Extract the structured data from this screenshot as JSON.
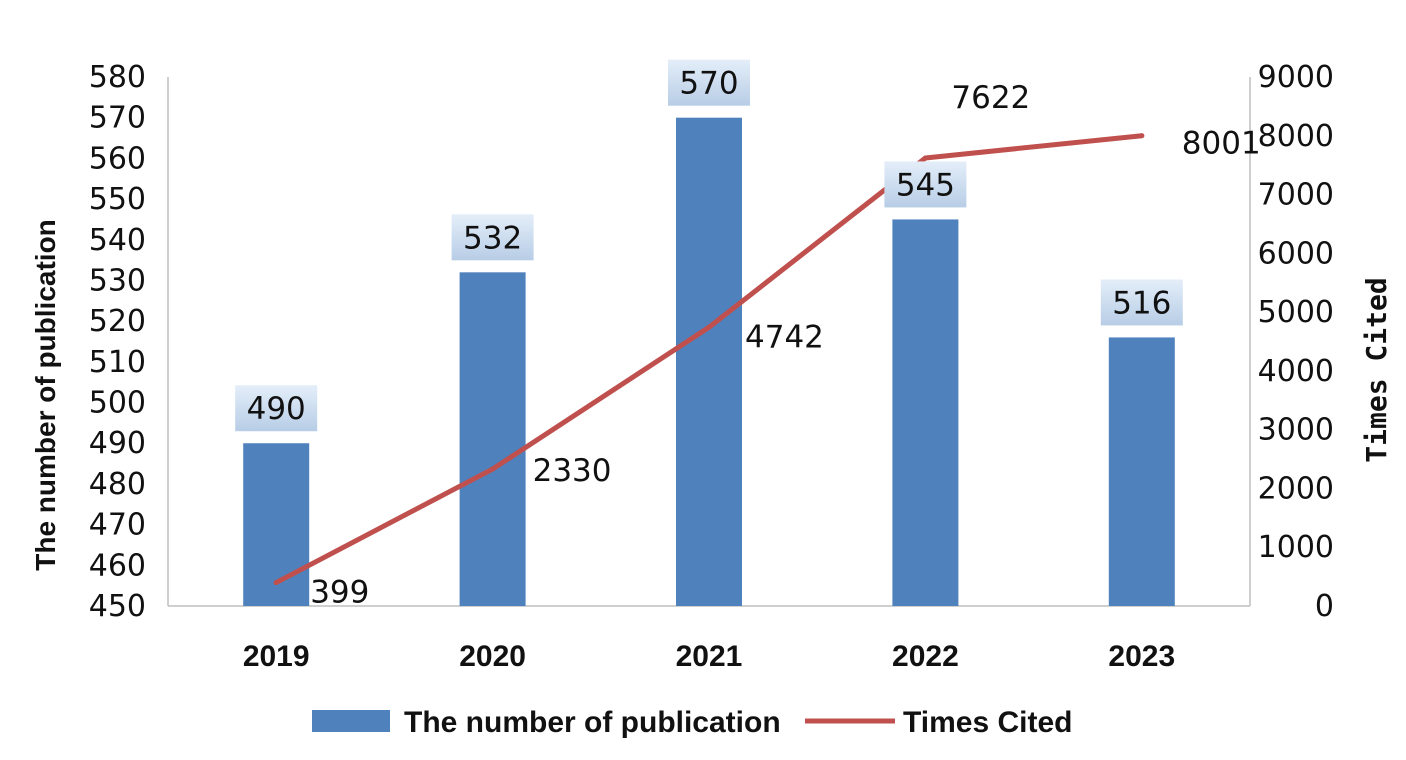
{
  "chart_data": {
    "type": "bar",
    "categories": [
      "2019",
      "2020",
      "2021",
      "2022",
      "2023"
    ],
    "series": [
      {
        "name": "The number of publication",
        "chart": "bar",
        "axis": "left",
        "values": [
          490,
          532,
          570,
          545,
          516
        ],
        "color": "#4f81bd"
      },
      {
        "name": "Times Cited",
        "chart": "line",
        "axis": "right",
        "values": [
          399,
          2330,
          4742,
          7622,
          8001
        ],
        "color": "#c0504d"
      }
    ],
    "ylabel": "The number of publication",
    "y2label": "Times Cited",
    "ylim": [
      450,
      580
    ],
    "y2lim": [
      0,
      9000
    ],
    "yticks": [
      "450",
      "460",
      "470",
      "480",
      "490",
      "500",
      "510",
      "520",
      "530",
      "540",
      "550",
      "560",
      "570",
      "580"
    ],
    "y2ticks": [
      "0",
      "1000",
      "2000",
      "3000",
      "4000",
      "5000",
      "6000",
      "7000",
      "8000",
      "9000"
    ],
    "legend": "bottom",
    "grid": false
  }
}
